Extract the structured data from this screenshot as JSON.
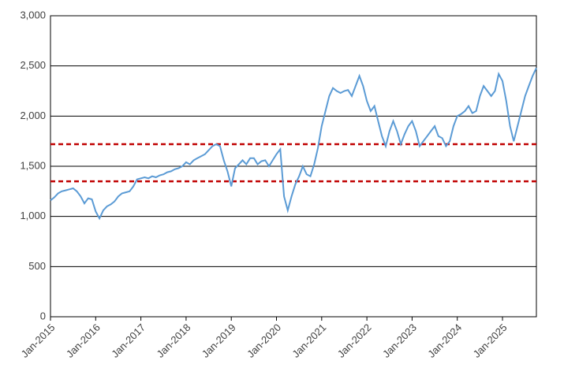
{
  "chart_data": {
    "type": "line",
    "x": [
      "2015-01",
      "2015-02",
      "2015-03",
      "2015-04",
      "2015-05",
      "2015-06",
      "2015-07",
      "2015-08",
      "2015-09",
      "2015-10",
      "2015-11",
      "2015-12",
      "2016-01",
      "2016-02",
      "2016-03",
      "2016-04",
      "2016-05",
      "2016-06",
      "2016-07",
      "2016-08",
      "2016-09",
      "2016-10",
      "2016-11",
      "2016-12",
      "2017-01",
      "2017-02",
      "2017-03",
      "2017-04",
      "2017-05",
      "2017-06",
      "2017-07",
      "2017-08",
      "2017-09",
      "2017-10",
      "2017-11",
      "2017-12",
      "2018-01",
      "2018-02",
      "2018-03",
      "2018-04",
      "2018-05",
      "2018-06",
      "2018-07",
      "2018-08",
      "2018-09",
      "2018-10",
      "2018-11",
      "2018-12",
      "2019-01",
      "2019-02",
      "2019-03",
      "2019-04",
      "2019-05",
      "2019-06",
      "2019-07",
      "2019-08",
      "2019-09",
      "2019-10",
      "2019-11",
      "2019-12",
      "2020-01",
      "2020-02",
      "2020-03",
      "2020-04",
      "2020-05",
      "2020-06",
      "2020-07",
      "2020-08",
      "2020-09",
      "2020-10",
      "2020-11",
      "2020-12",
      "2021-01",
      "2021-02",
      "2021-03",
      "2021-04",
      "2021-05",
      "2021-06",
      "2021-07",
      "2021-08",
      "2021-09",
      "2021-10",
      "2021-11",
      "2021-12",
      "2022-01",
      "2022-02",
      "2022-03",
      "2022-04",
      "2022-05",
      "2022-06",
      "2022-07",
      "2022-08",
      "2022-09",
      "2022-10",
      "2022-11",
      "2022-12",
      "2023-01",
      "2023-02",
      "2023-03",
      "2023-04",
      "2023-05",
      "2023-06",
      "2023-07",
      "2023-08",
      "2023-09",
      "2023-10",
      "2023-11",
      "2023-12",
      "2024-01",
      "2024-02",
      "2024-03",
      "2024-04",
      "2024-05",
      "2024-06",
      "2024-07",
      "2024-08",
      "2024-09",
      "2024-10",
      "2024-11",
      "2024-12",
      "2025-01",
      "2025-02",
      "2025-03",
      "2025-04",
      "2025-05",
      "2025-06",
      "2025-07",
      "2025-08",
      "2025-09",
      "2025-10"
    ],
    "series": [
      {
        "color": "#5b9bd5",
        "values": [
          1160,
          1190,
          1230,
          1250,
          1260,
          1270,
          1280,
          1250,
          1200,
          1130,
          1180,
          1170,
          1050,
          980,
          1060,
          1100,
          1120,
          1150,
          1200,
          1230,
          1240,
          1250,
          1300,
          1370,
          1380,
          1390,
          1380,
          1400,
          1390,
          1410,
          1420,
          1440,
          1450,
          1470,
          1480,
          1500,
          1540,
          1520,
          1560,
          1580,
          1600,
          1620,
          1660,
          1700,
          1720,
          1700,
          1560,
          1450,
          1300,
          1480,
          1520,
          1560,
          1520,
          1580,
          1580,
          1520,
          1550,
          1560,
          1500,
          1560,
          1620,
          1670,
          1200,
          1060,
          1200,
          1320,
          1400,
          1500,
          1420,
          1400,
          1520,
          1680,
          1900,
          2050,
          2200,
          2280,
          2250,
          2230,
          2250,
          2260,
          2200,
          2300,
          2400,
          2300,
          2150,
          2050,
          2100,
          1950,
          1800,
          1700,
          1850,
          1950,
          1850,
          1720,
          1820,
          1900,
          1950,
          1850,
          1700,
          1750,
          1800,
          1850,
          1900,
          1800,
          1780,
          1700,
          1750,
          1900,
          2000,
          2020,
          2050,
          2100,
          2030,
          2050,
          2200,
          2300,
          2250,
          2200,
          2250,
          2420,
          2350,
          2150,
          1900,
          1750,
          1900,
          2050,
          2200,
          2300,
          2400,
          2480
        ]
      }
    ],
    "hlines": [
      {
        "value": 1720,
        "color": "#c00000"
      },
      {
        "value": 1350,
        "color": "#c00000"
      }
    ],
    "xlim": [
      "2015-01",
      "2025-10"
    ],
    "xticks": [
      {
        "value": "2015-01",
        "label": "Jan-2015"
      },
      {
        "value": "2016-01",
        "label": "Jan-2016"
      },
      {
        "value": "2017-01",
        "label": "Jan-2017"
      },
      {
        "value": "2018-01",
        "label": "Jan-2018"
      },
      {
        "value": "2019-01",
        "label": "Jan-2019"
      },
      {
        "value": "2020-01",
        "label": "Jan-2020"
      },
      {
        "value": "2021-01",
        "label": "Jan-2021"
      },
      {
        "value": "2022-01",
        "label": "Jan-2022"
      },
      {
        "value": "2023-01",
        "label": "Jan-2023"
      },
      {
        "value": "2024-01",
        "label": "Jan-2024"
      },
      {
        "value": "2025-01",
        "label": "Jan-2025"
      }
    ],
    "ylim": [
      0,
      3000
    ],
    "yticks": [
      0,
      500,
      {
        "value": 1000,
        "label": "1,000"
      },
      {
        "value": 1500,
        "label": "1,500"
      },
      {
        "value": 2000,
        "label": "2,000"
      },
      {
        "value": 2500,
        "label": "2,500"
      },
      {
        "value": 3000,
        "label": "3,000"
      }
    ],
    "grid": true
  }
}
